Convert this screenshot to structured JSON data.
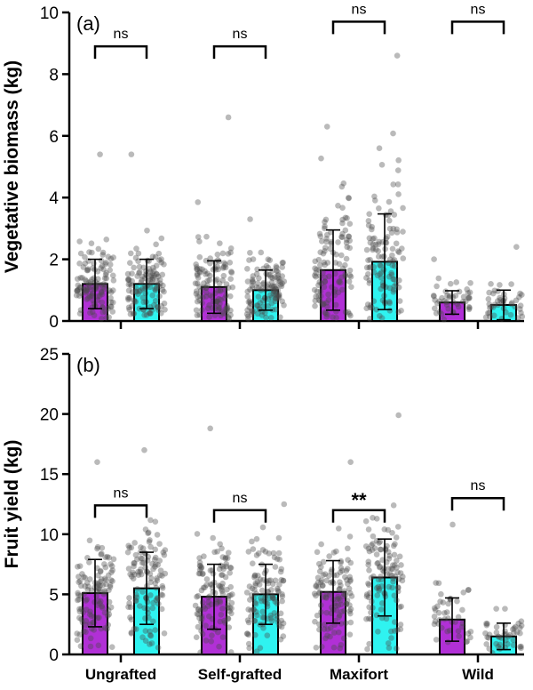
{
  "colors": {
    "series_1": "#b130d6",
    "series_2": "#2ff3f0",
    "points": "#4a4a4a",
    "axis": "#000000"
  },
  "chart_data": [
    {
      "type": "bar",
      "panel_label": "(a)",
      "ylabel": "Vegetative biomass (kg)",
      "ylim": [
        0,
        10
      ],
      "yticks": [
        0,
        2,
        4,
        6,
        8,
        10
      ],
      "categories": [
        "Ungrafted",
        "Self-grafted",
        "Maxifort",
        "Wild"
      ],
      "series": [
        {
          "values": [
            1.2,
            1.1,
            1.65,
            0.6
          ],
          "error": [
            0.8,
            0.85,
            1.3,
            0.38
          ]
        },
        {
          "values": [
            1.2,
            1.0,
            1.92,
            0.52
          ],
          "error": [
            0.8,
            0.65,
            1.55,
            0.48
          ]
        }
      ],
      "points_max": [
        [
          5.4,
          5.4
        ],
        [
          6.6,
          3.3
        ],
        [
          6.3,
          8.6
        ],
        [
          2.0,
          2.4
        ]
      ],
      "significance": [
        "ns",
        "ns",
        "ns",
        "ns"
      ],
      "grid": false
    },
    {
      "type": "bar",
      "panel_label": "(b)",
      "ylabel": "Fruit yield (kg)",
      "ylim": [
        0,
        25
      ],
      "yticks": [
        0,
        5,
        10,
        15,
        20,
        25
      ],
      "categories": [
        "Ungrafted",
        "Self-grafted",
        "Maxifort",
        "Wild"
      ],
      "series": [
        {
          "values": [
            5.1,
            4.8,
            5.2,
            2.9
          ],
          "error": [
            2.8,
            2.7,
            2.6,
            1.8
          ]
        },
        {
          "values": [
            5.5,
            5.0,
            6.4,
            1.5
          ],
          "error": [
            3.0,
            2.5,
            3.2,
            1.1
          ]
        }
      ],
      "points_max": [
        [
          16.0,
          17.0
        ],
        [
          18.8,
          12.5
        ],
        [
          16.0,
          19.9
        ],
        [
          10.8,
          3.8
        ]
      ],
      "significance": [
        "ns",
        "ns",
        "**",
        "ns"
      ],
      "grid": false
    }
  ]
}
